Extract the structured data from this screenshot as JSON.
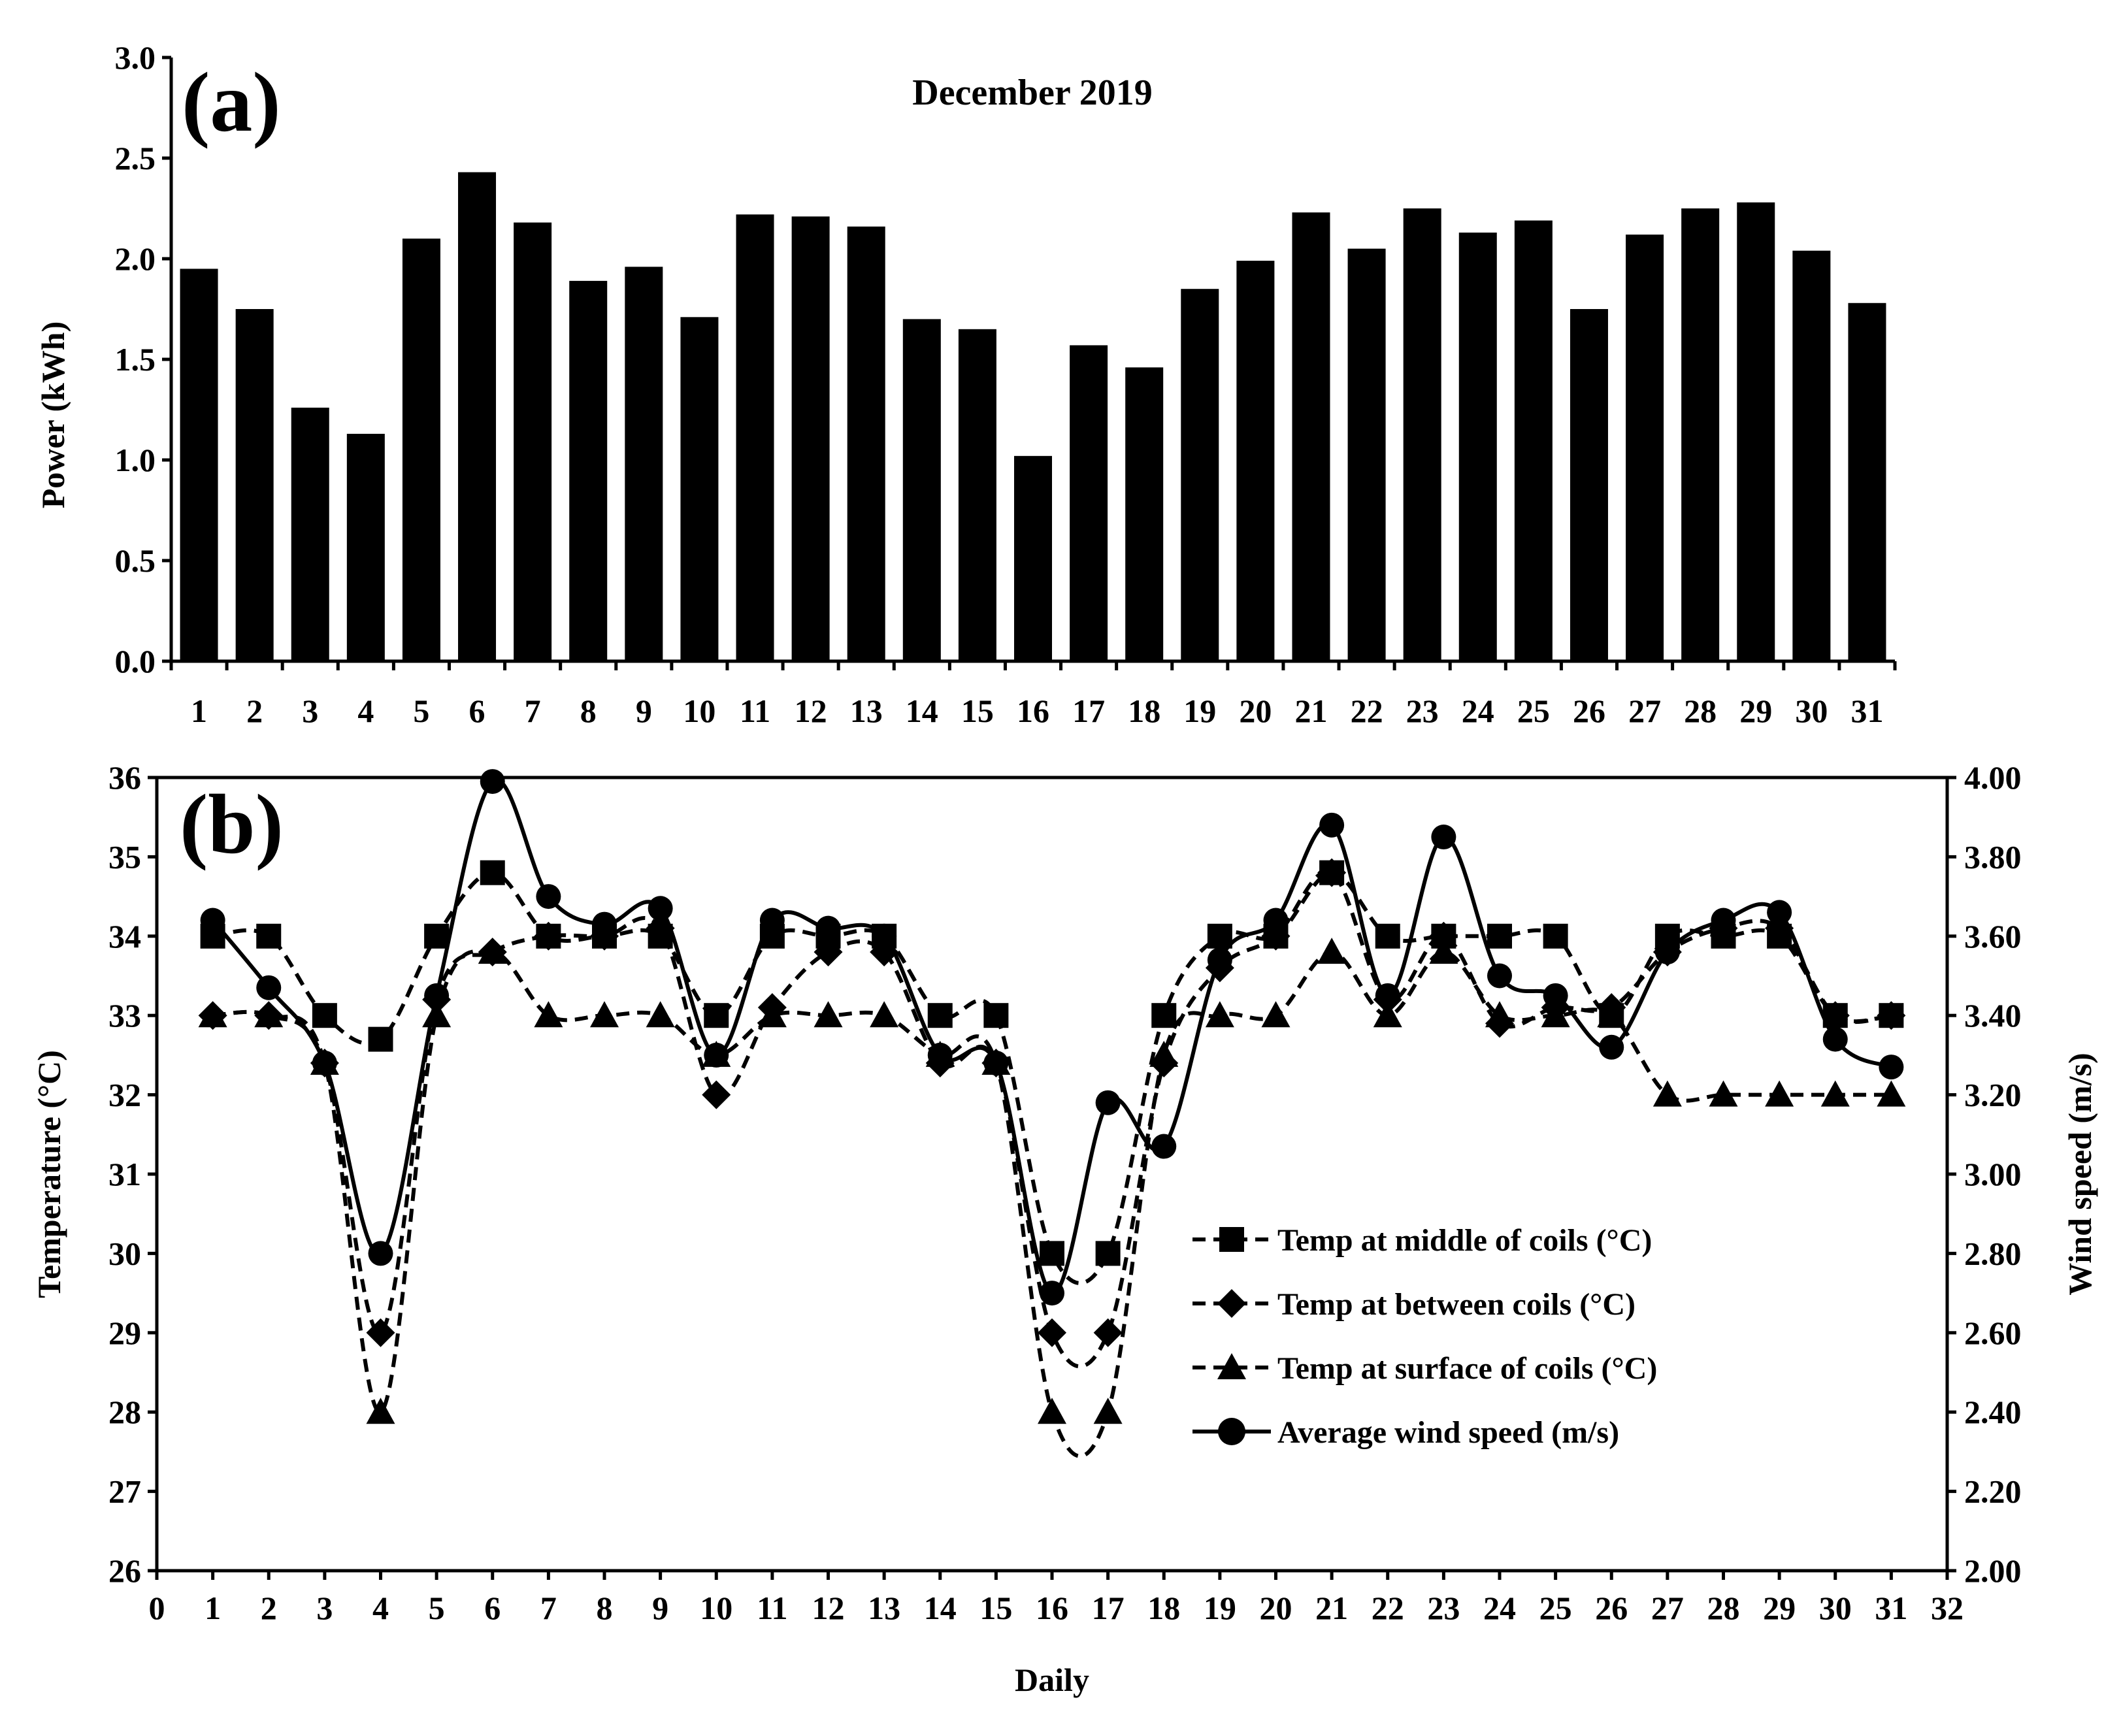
{
  "chart_data": [
    {
      "type": "bar",
      "panel_label": "(a)",
      "title": "December 2019",
      "xlabel": "",
      "ylabel": "Power (kWh)",
      "ylim": [
        0,
        3.0
      ],
      "ytick_labels": [
        "0.0",
        "0.5",
        "1.0",
        "1.5",
        "2.0",
        "2.5",
        "3.0"
      ],
      "categories": [
        "1",
        "2",
        "3",
        "4",
        "5",
        "6",
        "7",
        "8",
        "9",
        "10",
        "11",
        "12",
        "13",
        "14",
        "15",
        "16",
        "17",
        "18",
        "19",
        "20",
        "21",
        "22",
        "23",
        "24",
        "25",
        "26",
        "27",
        "28",
        "29",
        "30",
        "31"
      ],
      "values": [
        1.95,
        1.75,
        1.26,
        1.13,
        2.1,
        2.43,
        2.18,
        1.89,
        1.96,
        1.71,
        2.22,
        2.21,
        2.16,
        1.7,
        1.65,
        1.02,
        1.57,
        1.46,
        1.85,
        1.99,
        2.23,
        2.05,
        2.25,
        2.13,
        2.19,
        1.75,
        2.12,
        2.25,
        2.28,
        2.04,
        1.78
      ],
      "color": "#000000"
    },
    {
      "type": "line",
      "panel_label": "(b)",
      "xlabel": "Daily",
      "ylabel": "Temperature (°C)",
      "ylabel_right": "Wind speed (m/s)",
      "xlim": [
        0,
        32
      ],
      "ylim": [
        26,
        36
      ],
      "ylim_right": [
        2.0,
        4.0
      ],
      "xtick_labels": [
        "0",
        "1",
        "2",
        "3",
        "4",
        "5",
        "6",
        "7",
        "8",
        "9",
        "10",
        "11",
        "12",
        "13",
        "14",
        "15",
        "16",
        "17",
        "18",
        "19",
        "20",
        "21",
        "22",
        "23",
        "24",
        "25",
        "26",
        "27",
        "28",
        "29",
        "30",
        "31",
        "32"
      ],
      "ytick_labels": [
        "26",
        "27",
        "28",
        "29",
        "30",
        "31",
        "32",
        "33",
        "34",
        "35",
        "36"
      ],
      "ytick_labels_right": [
        "2.00",
        "2.20",
        "2.40",
        "2.60",
        "2.80",
        "3.00",
        "3.20",
        "3.40",
        "3.60",
        "3.80",
        "4.00"
      ],
      "x": [
        1,
        2,
        3,
        4,
        5,
        6,
        7,
        8,
        9,
        10,
        11,
        12,
        13,
        14,
        15,
        16,
        17,
        18,
        19,
        20,
        21,
        22,
        23,
        24,
        25,
        26,
        27,
        28,
        29,
        30,
        31
      ],
      "series": [
        {
          "name": "Temp at middle of coils (°C)",
          "marker": "square",
          "style": "dashed",
          "axis": "left",
          "values": [
            34,
            34,
            33,
            32.7,
            34,
            34.8,
            34,
            34,
            34,
            33,
            34,
            34,
            34,
            33,
            33,
            30,
            30,
            33,
            34,
            34,
            34.8,
            34,
            34,
            34,
            34,
            33,
            34,
            34,
            34,
            33,
            33
          ]
        },
        {
          "name": "Temp at between coils (°C)",
          "marker": "diamond",
          "style": "dashed",
          "axis": "left",
          "values": [
            33,
            33,
            32.4,
            29,
            33.2,
            33.8,
            34,
            34,
            34.1,
            32,
            33.1,
            33.8,
            33.8,
            32.4,
            32.4,
            29,
            29,
            32.4,
            33.6,
            34,
            34.8,
            33.2,
            34,
            32.9,
            33.1,
            33.1,
            33.8,
            34.1,
            34.1,
            33,
            33
          ]
        },
        {
          "name": "Temp at surface of coils (°C)",
          "marker": "triangle",
          "style": "dashed",
          "axis": "left",
          "values": [
            33,
            33,
            32.4,
            28,
            33,
            33.8,
            33,
            33,
            33,
            32.5,
            33,
            33,
            33,
            32.5,
            32.4,
            28,
            28,
            32.5,
            33,
            33,
            33.8,
            33,
            33.8,
            33,
            33,
            33,
            32,
            32,
            32,
            32,
            32
          ]
        },
        {
          "name": "Average wind speed (m/s)",
          "marker": "circle",
          "style": "solid",
          "axis": "right",
          "values": [
            3.64,
            3.47,
            3.28,
            2.8,
            3.45,
            3.99,
            3.7,
            3.63,
            3.67,
            3.3,
            3.64,
            3.62,
            3.6,
            3.3,
            3.28,
            2.7,
            3.18,
            3.07,
            3.54,
            3.64,
            3.88,
            3.45,
            3.85,
            3.5,
            3.45,
            3.32,
            3.56,
            3.64,
            3.66,
            3.34,
            3.27
          ]
        }
      ]
    }
  ]
}
